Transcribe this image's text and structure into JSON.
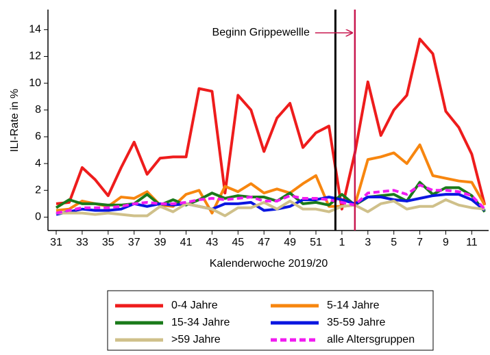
{
  "chart_data": {
    "type": "line",
    "x_label": "Kalenderwoche 2019/20",
    "y_label": "ILI-Rate in %",
    "categories": [
      "31",
      null,
      "33",
      null,
      "35",
      null,
      "37",
      null,
      "39",
      null,
      "41",
      null,
      "43",
      null,
      "45",
      null,
      "47",
      null,
      "49",
      null,
      "51",
      null,
      "1",
      null,
      "3",
      null,
      "5",
      null,
      "7",
      null,
      "9",
      null,
      "11",
      null
    ],
    "ylim": [
      -1,
      15.5
    ],
    "yticks": [
      0,
      2,
      4,
      6,
      8,
      10,
      12,
      14
    ],
    "year_break_index": 21.5,
    "annotation": {
      "text": "Beginn Grippewellle",
      "category_index": 23,
      "color": "#c8174f"
    },
    "series": [
      {
        "name": "0-4 Jahre",
        "color": "#ee1c1c",
        "values": [
          1.0,
          1.1,
          3.7,
          2.8,
          1.6,
          3.7,
          5.6,
          3.2,
          4.4,
          4.5,
          4.5,
          9.6,
          9.4,
          1.8,
          9.1,
          8.0,
          4.9,
          7.4,
          8.5,
          5.2,
          6.3,
          6.8,
          0.6,
          4.8,
          10.1,
          6.1,
          8.0,
          9.1,
          13.3,
          12.2,
          7.9,
          6.7,
          4.7,
          0.9
        ]
      },
      {
        "name": "5-14 Jahre",
        "color": "#f7860f",
        "values": [
          0.5,
          0.6,
          1.2,
          1.0,
          0.8,
          1.5,
          1.4,
          1.9,
          0.9,
          0.8,
          1.7,
          2.0,
          0.3,
          2.3,
          1.9,
          2.5,
          1.8,
          2.1,
          1.8,
          2.5,
          3.1,
          0.8,
          0.8,
          0.9,
          4.3,
          4.5,
          4.8,
          4.0,
          5.4,
          3.1,
          2.9,
          2.7,
          2.6,
          0.9
        ]
      },
      {
        "name": "15-34 Jahre",
        "color": "#1a7a1a",
        "values": [
          0.7,
          1.3,
          1.0,
          1.0,
          0.9,
          0.9,
          1.0,
          1.7,
          0.9,
          1.3,
          0.9,
          1.3,
          1.8,
          1.4,
          1.6,
          1.5,
          1.5,
          1.2,
          1.8,
          1.0,
          1.1,
          0.9,
          1.7,
          0.9,
          1.5,
          1.6,
          1.7,
          1.2,
          2.6,
          1.7,
          2.2,
          2.2,
          1.6,
          0.4
        ]
      },
      {
        "name": "35-59 Jahre",
        "color": "#0a16e0",
        "values": [
          0.2,
          0.4,
          0.6,
          0.5,
          0.5,
          0.6,
          1.0,
          0.8,
          1.0,
          0.9,
          1.0,
          0.8,
          0.6,
          1.0,
          1.0,
          1.1,
          0.5,
          0.6,
          0.8,
          1.3,
          1.3,
          1.5,
          1.3,
          1.0,
          1.5,
          1.5,
          1.3,
          1.2,
          1.4,
          1.6,
          1.7,
          1.7,
          1.3,
          0.5
        ]
      },
      {
        "name": ">59 Jahre",
        "color": "#cfc08a",
        "values": [
          0.3,
          0.3,
          0.3,
          0.2,
          0.3,
          0.2,
          0.1,
          0.1,
          0.8,
          0.4,
          1.0,
          0.8,
          0.6,
          0.1,
          0.7,
          0.7,
          1.1,
          0.6,
          1.2,
          0.6,
          0.6,
          0.4,
          0.8,
          0.9,
          0.4,
          1.0,
          1.2,
          0.6,
          0.8,
          0.8,
          1.3,
          0.9,
          0.7,
          0.6
        ]
      },
      {
        "name": "alle Altersgruppen",
        "color": "#f01cf0",
        "dashed": true,
        "values": [
          0.3,
          0.5,
          0.7,
          0.7,
          0.7,
          0.8,
          1.0,
          1.1,
          1.0,
          1.0,
          1.1,
          1.3,
          1.4,
          1.3,
          1.4,
          1.5,
          1.2,
          1.2,
          1.6,
          1.4,
          1.4,
          1.3,
          1.1,
          0.9,
          1.8,
          1.9,
          2.0,
          1.7,
          2.4,
          2.0,
          2.0,
          1.9,
          1.6,
          0.6
        ]
      }
    ]
  }
}
